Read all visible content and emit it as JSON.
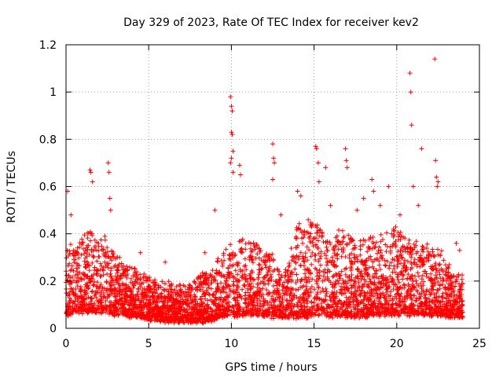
{
  "chart_data": {
    "type": "scatter",
    "title": "Day 329 of 2023, Rate Of TEC Index for receiver kev2",
    "xlabel": "GPS time / hours",
    "ylabel": "ROTI / TECUs",
    "xlim": [
      0,
      25
    ],
    "ylim": [
      0,
      1.2
    ],
    "xticks": [
      "0",
      "5",
      "10",
      "15",
      "20",
      "25"
    ],
    "yticks": [
      "0",
      "0.2",
      "0.4",
      "0.6",
      "0.8",
      "1",
      "1.2"
    ],
    "grid": true,
    "marker": "+",
    "color": "#ff0000",
    "envelope": {
      "x": [
        0,
        0.25,
        0.5,
        1,
        1.5,
        2,
        2.5,
        3,
        3.5,
        4,
        4.5,
        5,
        5.5,
        6,
        6.5,
        7,
        7.5,
        8,
        8.5,
        9,
        9.5,
        10,
        10.5,
        11,
        11.5,
        12,
        12.5,
        13,
        13.5,
        14,
        14.5,
        15,
        15.5,
        16,
        16.5,
        17,
        17.5,
        18,
        18.5,
        19,
        19.5,
        20,
        20.5,
        21,
        21.5,
        22,
        22.5,
        23,
        23.5,
        24
      ],
      "base": [
        0.06,
        0.06,
        0.07,
        0.07,
        0.07,
        0.07,
        0.07,
        0.06,
        0.06,
        0.05,
        0.05,
        0.04,
        0.04,
        0.03,
        0.03,
        0.03,
        0.03,
        0.03,
        0.03,
        0.04,
        0.05,
        0.06,
        0.05,
        0.06,
        0.06,
        0.05,
        0.05,
        0.05,
        0.05,
        0.05,
        0.05,
        0.06,
        0.06,
        0.05,
        0.05,
        0.05,
        0.05,
        0.05,
        0.06,
        0.06,
        0.06,
        0.06,
        0.06,
        0.06,
        0.06,
        0.06,
        0.06,
        0.05,
        0.05,
        0.05
      ],
      "top": [
        0.32,
        0.36,
        0.34,
        0.38,
        0.42,
        0.36,
        0.42,
        0.32,
        0.26,
        0.26,
        0.24,
        0.22,
        0.2,
        0.2,
        0.18,
        0.18,
        0.2,
        0.22,
        0.24,
        0.27,
        0.32,
        0.38,
        0.42,
        0.36,
        0.36,
        0.32,
        0.32,
        0.22,
        0.32,
        0.45,
        0.46,
        0.46,
        0.44,
        0.36,
        0.42,
        0.42,
        0.36,
        0.38,
        0.4,
        0.4,
        0.42,
        0.42,
        0.4,
        0.36,
        0.36,
        0.35,
        0.34,
        0.3,
        0.24,
        0.22
      ]
    },
    "spikes": [
      {
        "x": 0.1,
        "y": 0.58
      },
      {
        "x": 0.3,
        "y": 0.48
      },
      {
        "x": 1.45,
        "y": 0.67
      },
      {
        "x": 1.5,
        "y": 0.66
      },
      {
        "x": 1.6,
        "y": 0.62
      },
      {
        "x": 2.55,
        "y": 0.7
      },
      {
        "x": 2.6,
        "y": 0.66
      },
      {
        "x": 2.65,
        "y": 0.55
      },
      {
        "x": 2.7,
        "y": 0.5
      },
      {
        "x": 9.0,
        "y": 0.5
      },
      {
        "x": 9.95,
        "y": 0.98
      },
      {
        "x": 10.0,
        "y": 0.94
      },
      {
        "x": 10.05,
        "y": 0.92
      },
      {
        "x": 10.0,
        "y": 0.83
      },
      {
        "x": 10.05,
        "y": 0.82
      },
      {
        "x": 10.1,
        "y": 0.75
      },
      {
        "x": 10.0,
        "y": 0.72
      },
      {
        "x": 9.95,
        "y": 0.7
      },
      {
        "x": 10.1,
        "y": 0.66
      },
      {
        "x": 10.5,
        "y": 0.69
      },
      {
        "x": 10.55,
        "y": 0.65
      },
      {
        "x": 12.5,
        "y": 0.78
      },
      {
        "x": 12.55,
        "y": 0.72
      },
      {
        "x": 12.6,
        "y": 0.7
      },
      {
        "x": 12.5,
        "y": 0.63
      },
      {
        "x": 15.1,
        "y": 0.77
      },
      {
        "x": 15.15,
        "y": 0.76
      },
      {
        "x": 15.25,
        "y": 0.7
      },
      {
        "x": 15.3,
        "y": 0.62
      },
      {
        "x": 15.7,
        "y": 0.68
      },
      {
        "x": 16.9,
        "y": 0.76
      },
      {
        "x": 16.95,
        "y": 0.71
      },
      {
        "x": 17.0,
        "y": 0.68
      },
      {
        "x": 18.5,
        "y": 0.63
      },
      {
        "x": 18.6,
        "y": 0.58
      },
      {
        "x": 19.5,
        "y": 0.6
      },
      {
        "x": 20.8,
        "y": 1.08
      },
      {
        "x": 20.85,
        "y": 1.0
      },
      {
        "x": 20.9,
        "y": 0.86
      },
      {
        "x": 21.0,
        "y": 0.6
      },
      {
        "x": 21.5,
        "y": 0.76
      },
      {
        "x": 22.3,
        "y": 1.14
      },
      {
        "x": 22.35,
        "y": 0.71
      },
      {
        "x": 22.4,
        "y": 0.64
      },
      {
        "x": 22.45,
        "y": 0.6
      },
      {
        "x": 22.5,
        "y": 0.62
      },
      {
        "x": 21.3,
        "y": 0.52
      },
      {
        "x": 14.0,
        "y": 0.58
      },
      {
        "x": 14.2,
        "y": 0.56
      },
      {
        "x": 13.0,
        "y": 0.48
      },
      {
        "x": 16.0,
        "y": 0.52
      },
      {
        "x": 17.6,
        "y": 0.5
      },
      {
        "x": 18.0,
        "y": 0.55
      },
      {
        "x": 19.0,
        "y": 0.52
      },
      {
        "x": 20.2,
        "y": 0.48
      },
      {
        "x": 23.6,
        "y": 0.36
      },
      {
        "x": 23.8,
        "y": 0.33
      },
      {
        "x": 8.4,
        "y": 0.32
      },
      {
        "x": 6.0,
        "y": 0.28
      },
      {
        "x": 4.5,
        "y": 0.32
      }
    ]
  }
}
